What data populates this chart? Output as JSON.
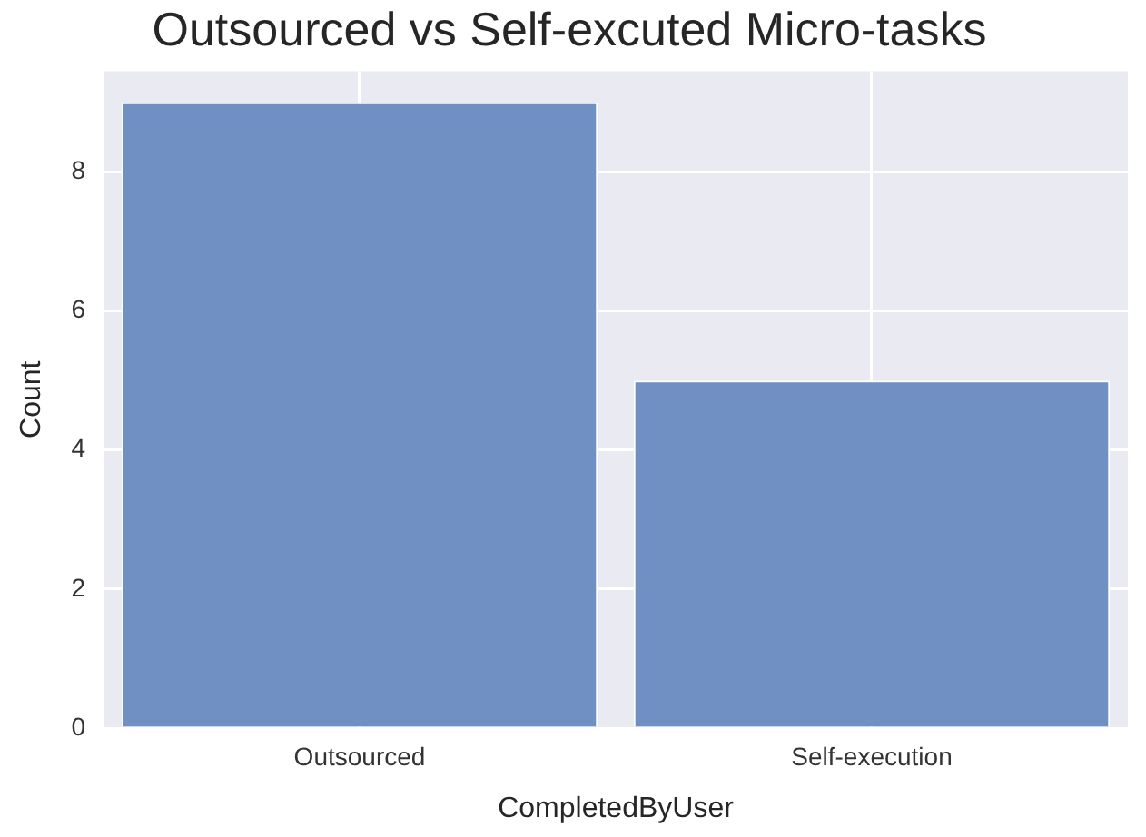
{
  "chart_data": {
    "type": "bar",
    "title": "Outsourced vs Self-excuted Micro-tasks",
    "xlabel": "CompletedByUser",
    "ylabel": "Count",
    "categories": [
      "Outsourced",
      "Self-execution"
    ],
    "values": [
      9,
      5
    ],
    "color": "#7090c3",
    "ylim": [
      0,
      9.45
    ],
    "yticks": [
      0,
      2,
      4,
      6,
      8
    ],
    "grid": true
  }
}
